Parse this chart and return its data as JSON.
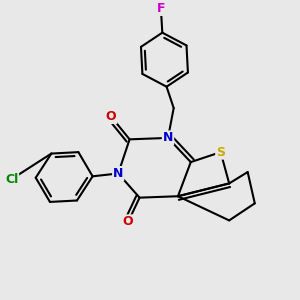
{
  "background_color": "#e8e8e8",
  "atom_colors": {
    "N": "#0000cc",
    "O": "#cc0000",
    "S": "#ccaa00",
    "F": "#cc00cc",
    "Cl": "#008800",
    "C": "#000000"
  },
  "bond_color": "#000000",
  "bond_lw": 1.5
}
